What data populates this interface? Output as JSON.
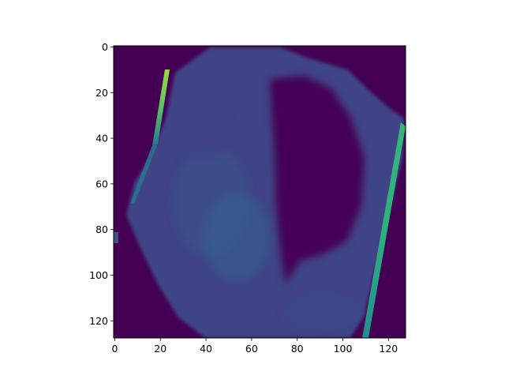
{
  "chart_data": {
    "type": "heatmap",
    "title": "",
    "xlabel": "",
    "ylabel": "",
    "colormap": "viridis",
    "image_size": [
      128,
      128
    ],
    "xlim": [
      -0.5,
      127.5
    ],
    "ylim": [
      127.5,
      -0.5
    ],
    "x_ticks": [
      0,
      20,
      40,
      60,
      80,
      100,
      120
    ],
    "y_ticks": [
      0,
      20,
      40,
      60,
      80,
      100,
      120
    ],
    "x_tick_labels": [
      "0",
      "20",
      "40",
      "60",
      "80",
      "100",
      "120"
    ],
    "y_tick_labels": [
      "0",
      "20",
      "40",
      "60",
      "80",
      "100",
      "120"
    ],
    "background_value": 0.0,
    "grid": false,
    "colorbar": false
  }
}
